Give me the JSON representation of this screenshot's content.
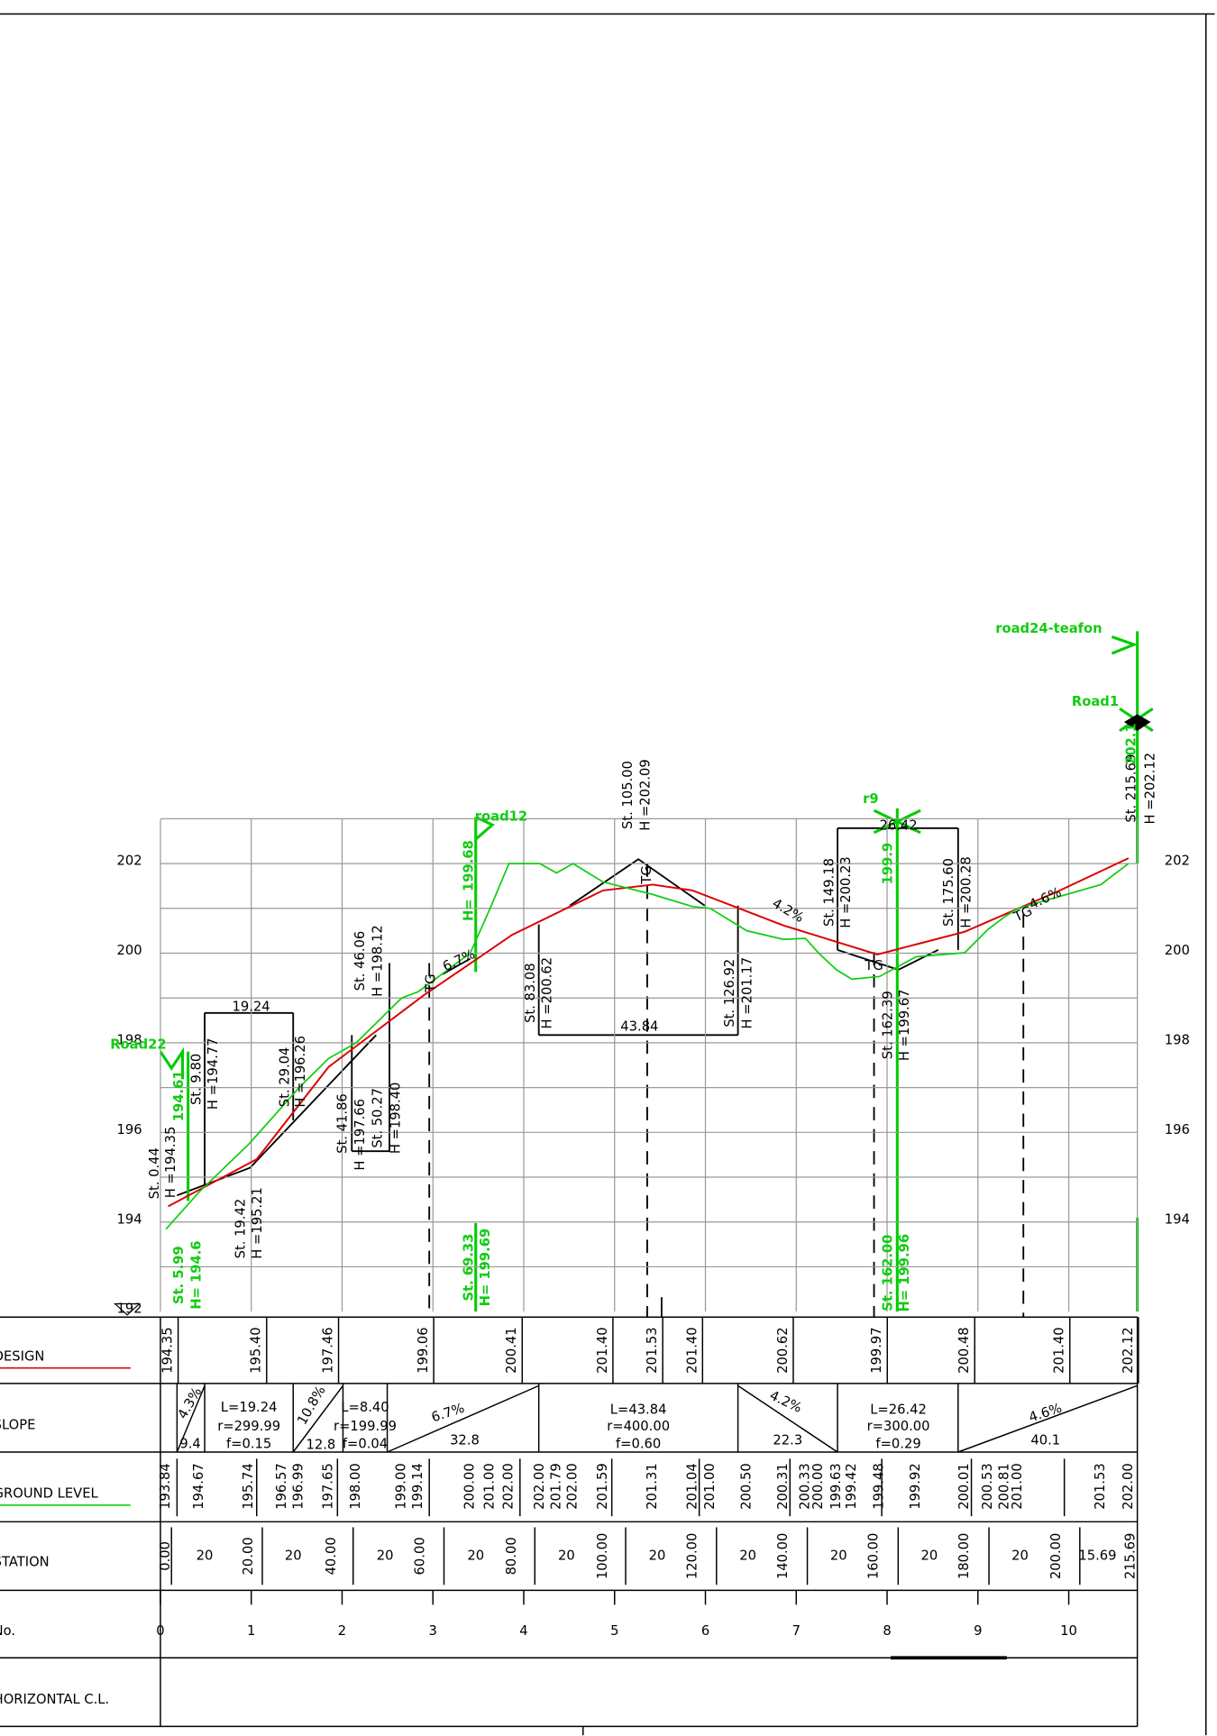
{
  "axis_left": [
    202,
    200,
    198,
    196,
    194,
    192
  ],
  "axis_right": [
    202,
    200,
    198,
    196,
    194
  ],
  "rows": [
    "DESIGN",
    "SLOPE",
    "GROUND LEVEL",
    "STATION",
    "No.",
    "HORIZONTAL C.L."
  ],
  "design": [
    "194.35",
    "195.40",
    "197.46",
    "199.06",
    "200.41",
    "201.40",
    "201.53",
    "201.40",
    "200.62",
    "199.97",
    "200.48",
    "201.40",
    "202.12"
  ],
  "slope": [
    "4.3%",
    "9.4",
    "L=19.24",
    "r=299.99",
    "f=0.15",
    "10.8%",
    "12.8",
    "L=8.40",
    "r=199.99",
    "f=0.04",
    "6.7%",
    "32.8",
    "L=43.84",
    "r=400.00",
    "f=0.60",
    "4.2%",
    "22.3",
    "L=26.42",
    "r=300.00",
    "f=0.29",
    "4.6%",
    "40.1"
  ],
  "ground": [
    "193.84",
    "194.67",
    "195.74",
    "196.57",
    "196.99",
    "197.65",
    "198.00",
    "199.00",
    "199.14",
    "200.00",
    "201.00",
    "202.00",
    "202.00",
    "201.79",
    "202.00",
    "201.59",
    "201.31",
    "201.04",
    "201.00",
    "200.50",
    "200.31",
    "200.33",
    "200.00",
    "199.63",
    "199.42",
    "199.48",
    "199.92",
    "200.01",
    "200.53",
    "200.81",
    "201.00",
    "201.53",
    "202.00"
  ],
  "station": [
    "0.00",
    "20",
    "20.00",
    "20",
    "40.00",
    "20",
    "60.00",
    "20",
    "80.00",
    "20",
    "100.00",
    "20",
    "120.00",
    "20",
    "140.00",
    "20",
    "160.00",
    "20",
    "180.00",
    "20",
    "200.00",
    "15.69",
    "215.69"
  ],
  "numbers": [
    "0",
    "1",
    "2",
    "3",
    "4",
    "5",
    "6",
    "7",
    "8",
    "9",
    "10"
  ],
  "annotations": [
    "St. 0.44",
    "H =194.35",
    "St. 9.80",
    "H =194.77",
    "19.24",
    "St. 19.42",
    "H =195.21",
    "St. 29.04",
    "H =196.26",
    "St. 41.86",
    "H =197.66",
    "St. 50.27",
    "H =198.40",
    "St. 46.06",
    "H =198.12",
    "6.7%",
    "St. 83.08",
    "H =200.62",
    "43.84",
    "St. 105.00",
    "H =202.09",
    "St. 126.92",
    "H =201.17",
    "4.2%",
    "St. 149.18",
    "H =200.23",
    "26.42",
    "St. 162.39",
    "H =199.67",
    "St. 175.60",
    "H =200.28",
    "4.6%",
    "St. 215.69",
    "H =202.12",
    "TG",
    "TG",
    "TG",
    "TG",
    "Road22",
    "194.61",
    "St. 5.99",
    "H= 194.6",
    "road12",
    "199.68",
    "H=",
    "St. 69.33",
    "H= 199.69",
    "r9",
    "199.9",
    "St. 162.00",
    "H= 199.96",
    "road24-teafon",
    "Road1",
    "202.1"
  ]
}
